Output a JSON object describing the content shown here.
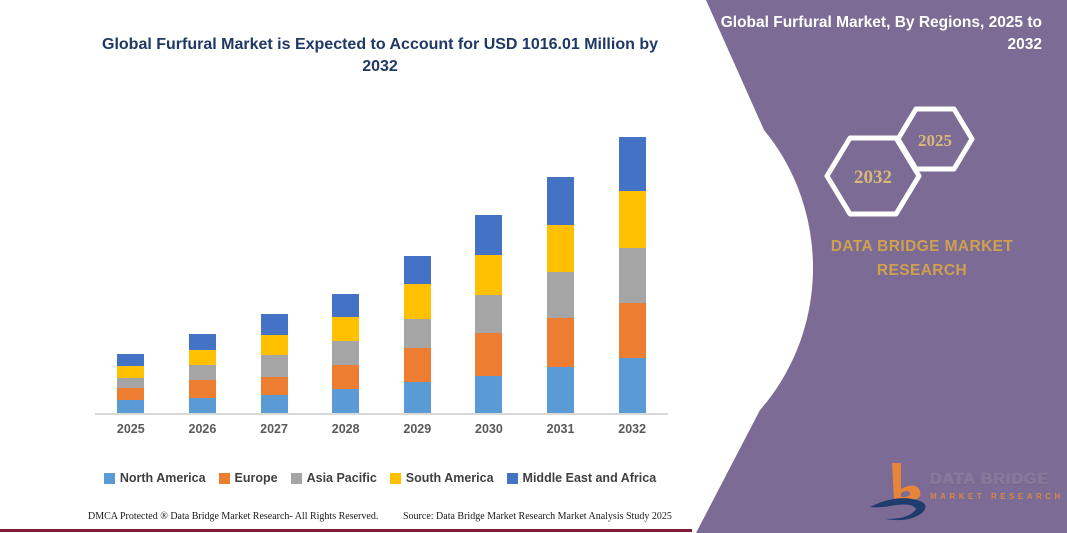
{
  "chart_panel": {
    "title": "Global Furfural Market is Expected to Account for USD 1016.01 Million by 2032",
    "title_color": "#1F3864",
    "axis_line_color": "#D9D9D9",
    "label_color": "#595959",
    "footer": {
      "dmca": "DMCA Protected ® Data Bridge Market Research-  All Rights Reserved.",
      "source": "Source: Data Bridge Market Research  Market Analysis Study 2025"
    },
    "bottom_line_color": "#7E1E35"
  },
  "chart_data": {
    "type": "bar",
    "stacked": true,
    "title": "Global Furfural Market is Expected to Account for USD 1016.01 Million by 2032",
    "unit": "USD Million (estimated from bar heights; no y-axis shown)",
    "categories": [
      "2025",
      "2026",
      "2027",
      "2028",
      "2029",
      "2030",
      "2031",
      "2032"
    ],
    "series": [
      {
        "name": "North America",
        "color": "#5B9BD5",
        "values": [
          49,
          55,
          67,
          88,
          116,
          135,
          169,
          202
        ]
      },
      {
        "name": "Europe",
        "color": "#ED7D31",
        "values": [
          43,
          67,
          67,
          88,
          122,
          159,
          180,
          204
        ]
      },
      {
        "name": "Asia Pacific",
        "color": "#A5A5A5",
        "values": [
          37,
          55,
          80,
          88,
          110,
          141,
          171,
          203
        ]
      },
      {
        "name": "South America",
        "color": "#FFC000",
        "values": [
          43,
          55,
          73,
          88,
          129,
          147,
          171,
          207
        ]
      },
      {
        "name": "Middle East and Africa",
        "color": "#4472C4",
        "values": [
          46,
          59,
          77,
          86,
          100,
          147,
          177,
          200
        ]
      }
    ],
    "totals": [
      218,
      291,
      364,
      438,
      577,
      729,
      868,
      1016
    ],
    "xlabel": "",
    "ylabel": "",
    "ylim": [
      0,
      1050
    ],
    "grid": false,
    "y_axis_visible": false,
    "legend_position": "bottom"
  },
  "side_panel": {
    "bg_color": "#7C6B94",
    "heading": "Global Furfural Market, By Regions, 2025 to 2032",
    "hexagon_large_label": "2032",
    "hexagon_small_label": "2025",
    "hexagon_label_color": "#D9B87C",
    "brand_name": "DATA BRIDGE MARKET RESEARCH",
    "brand_color": "#CFA14F",
    "logo": {
      "text_top": "DATA BRIDGE",
      "text_bottom": "MARKET RESEARCH"
    }
  }
}
